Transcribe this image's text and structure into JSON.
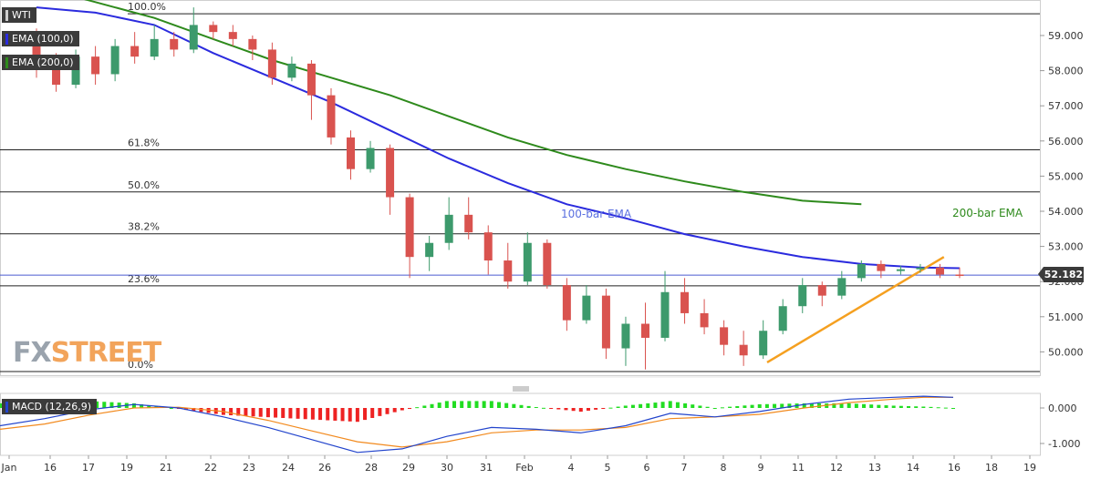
{
  "instrument": "WTI",
  "indicators": {
    "ema100": {
      "label": "EMA (100,0)",
      "color": "#2b2bde"
    },
    "ema200": {
      "label": "EMA (200,0)",
      "color": "#2e8a1c"
    },
    "macd": {
      "label": "MACD (12,26,9)"
    }
  },
  "annotations": {
    "ema100_label": "100-bar EMA",
    "ema200_label": "200-bar EMA"
  },
  "current_price": "52.182",
  "watermark": {
    "fx": "FX",
    "street": "STREET"
  },
  "colors": {
    "up": "#3d9a6c",
    "down": "#d9534f",
    "trendline": "#f5a020",
    "macd_line": "#2244cc",
    "signal_line": "#f28a1e",
    "hist_pos": "#22dd22",
    "hist_neg": "#ee2222"
  },
  "chart_data": {
    "type": "candlestick",
    "price_axis": {
      "ticks": [
        "59.000",
        "58.000",
        "57.000",
        "56.000",
        "55.000",
        "54.000",
        "53.000",
        "52.000",
        "51.000",
        "50.000"
      ],
      "range": [
        49.4,
        59.9
      ]
    },
    "x_labels": [
      "Jan",
      "16",
      "17",
      "19",
      "21",
      "22",
      "23",
      "24",
      "26",
      "28",
      "29",
      "30",
      "31",
      "Feb",
      "4",
      "5",
      "6",
      "7",
      "8",
      "9",
      "11",
      "12",
      "13",
      "14",
      "16",
      "18",
      "19"
    ],
    "fibonacci": [
      {
        "label": "100.0%",
        "price": 59.62
      },
      {
        "label": "61.8%",
        "price": 55.75
      },
      {
        "label": "50.0%",
        "price": 54.55
      },
      {
        "label": "38.2%",
        "price": 53.36
      },
      {
        "label": "23.6%",
        "price": 51.88
      },
      {
        "label": "0.0%",
        "price": 49.44
      }
    ],
    "ema100": [
      [
        0,
        59.8
      ],
      [
        3,
        59.65
      ],
      [
        6,
        59.3
      ],
      [
        9,
        58.5
      ],
      [
        12,
        57.8
      ],
      [
        15,
        57.1
      ],
      [
        18,
        56.3
      ],
      [
        21,
        55.5
      ],
      [
        24,
        54.8
      ],
      [
        27,
        54.2
      ],
      [
        30,
        53.8
      ],
      [
        33,
        53.35
      ],
      [
        36,
        53.0
      ],
      [
        39,
        52.7
      ],
      [
        42,
        52.5
      ],
      [
        45,
        52.4
      ],
      [
        47,
        52.38
      ]
    ],
    "ema200": [
      [
        0,
        60.4
      ],
      [
        3,
        59.95
      ],
      [
        6,
        59.5
      ],
      [
        9,
        58.9
      ],
      [
        12,
        58.3
      ],
      [
        15,
        57.8
      ],
      [
        18,
        57.3
      ],
      [
        21,
        56.7
      ],
      [
        24,
        56.1
      ],
      [
        27,
        55.6
      ],
      [
        30,
        55.2
      ],
      [
        33,
        54.85
      ],
      [
        36,
        54.55
      ],
      [
        39,
        54.3
      ],
      [
        42,
        54.2
      ]
    ],
    "trendline": {
      "start": [
        37.2,
        49.7
      ],
      "end": [
        46.2,
        52.7
      ]
    },
    "candles": [
      [
        58.8,
        58.1,
        59.2,
        57.8
      ],
      [
        58.1,
        57.6,
        58.5,
        57.4
      ],
      [
        57.6,
        58.4,
        58.6,
        57.5
      ],
      [
        58.4,
        57.9,
        58.7,
        57.6
      ],
      [
        57.9,
        58.7,
        58.9,
        57.7
      ],
      [
        58.7,
        58.4,
        59.1,
        58.2
      ],
      [
        58.4,
        58.9,
        59.3,
        58.3
      ],
      [
        58.9,
        58.6,
        59.1,
        58.4
      ],
      [
        58.6,
        59.3,
        59.8,
        58.5
      ],
      [
        59.3,
        59.1,
        59.4,
        58.9
      ],
      [
        59.1,
        58.9,
        59.3,
        58.7
      ],
      [
        58.9,
        58.6,
        59.0,
        58.3
      ],
      [
        58.6,
        57.8,
        58.8,
        57.6
      ],
      [
        57.8,
        58.2,
        58.4,
        57.7
      ],
      [
        58.2,
        57.3,
        58.3,
        56.6
      ],
      [
        57.3,
        56.1,
        57.5,
        55.9
      ],
      [
        56.1,
        55.2,
        56.3,
        54.9
      ],
      [
        55.2,
        55.8,
        56.0,
        55.1
      ],
      [
        55.8,
        54.4,
        55.9,
        53.9
      ],
      [
        54.4,
        52.7,
        54.5,
        52.1
      ],
      [
        52.7,
        53.1,
        53.3,
        52.3
      ],
      [
        53.1,
        53.9,
        54.4,
        52.9
      ],
      [
        53.9,
        53.4,
        54.4,
        53.2
      ],
      [
        53.4,
        52.6,
        53.6,
        52.2
      ],
      [
        52.6,
        52.0,
        53.1,
        51.8
      ],
      [
        52.0,
        53.1,
        53.4,
        51.9
      ],
      [
        53.1,
        51.9,
        53.2,
        51.8
      ],
      [
        51.9,
        50.9,
        52.1,
        50.6
      ],
      [
        50.9,
        51.6,
        51.9,
        50.8
      ],
      [
        51.6,
        50.1,
        51.8,
        49.8
      ],
      [
        50.1,
        50.8,
        51.0,
        49.6
      ],
      [
        50.8,
        50.4,
        51.4,
        49.5
      ],
      [
        50.4,
        51.7,
        52.3,
        50.3
      ],
      [
        51.7,
        51.1,
        52.1,
        50.8
      ],
      [
        51.1,
        50.7,
        51.5,
        50.5
      ],
      [
        50.7,
        50.2,
        50.9,
        49.9
      ],
      [
        50.2,
        49.9,
        50.6,
        49.6
      ],
      [
        49.9,
        50.6,
        50.9,
        49.8
      ],
      [
        50.6,
        51.3,
        51.5,
        50.5
      ],
      [
        51.3,
        51.9,
        52.1,
        51.1
      ],
      [
        51.9,
        51.6,
        52.0,
        51.3
      ],
      [
        51.6,
        52.1,
        52.3,
        51.5
      ],
      [
        52.1,
        52.5,
        52.6,
        52.0
      ],
      [
        52.5,
        52.3,
        52.6,
        52.1
      ],
      [
        52.3,
        52.35,
        52.45,
        52.2
      ],
      [
        52.35,
        52.4,
        52.5,
        52.25
      ],
      [
        52.4,
        52.2,
        52.5,
        52.1
      ],
      [
        52.2,
        52.18,
        52.4,
        52.1
      ]
    ],
    "macd": {
      "ticks": [
        "0.000",
        "-1.000"
      ],
      "range": [
        -1.35,
        0.38
      ],
      "macd_line": [
        [
          0,
          -0.5
        ],
        [
          3,
          -0.3
        ],
        [
          6,
          -0.05
        ],
        [
          9,
          0.1
        ],
        [
          12,
          0.0
        ],
        [
          15,
          -0.25
        ],
        [
          18,
          -0.55
        ],
        [
          21,
          -0.9
        ],
        [
          24,
          -1.25
        ],
        [
          27,
          -1.15
        ],
        [
          30,
          -0.8
        ],
        [
          33,
          -0.55
        ],
        [
          36,
          -0.6
        ],
        [
          39,
          -0.7
        ],
        [
          42,
          -0.5
        ],
        [
          45,
          -0.15
        ],
        [
          48,
          -0.25
        ],
        [
          51,
          -0.1
        ],
        [
          54,
          0.1
        ],
        [
          57,
          0.25
        ],
        [
          60,
          0.3
        ],
        [
          62,
          0.33
        ],
        [
          64,
          0.3
        ]
      ],
      "signal_line": [
        [
          0,
          -0.6
        ],
        [
          3,
          -0.45
        ],
        [
          6,
          -0.2
        ],
        [
          9,
          0.0
        ],
        [
          12,
          0.02
        ],
        [
          15,
          -0.1
        ],
        [
          18,
          -0.35
        ],
        [
          21,
          -0.65
        ],
        [
          24,
          -0.95
        ],
        [
          27,
          -1.1
        ],
        [
          30,
          -0.95
        ],
        [
          33,
          -0.7
        ],
        [
          36,
          -0.62
        ],
        [
          39,
          -0.62
        ],
        [
          42,
          -0.55
        ],
        [
          45,
          -0.3
        ],
        [
          48,
          -0.25
        ],
        [
          51,
          -0.18
        ],
        [
          54,
          0.0
        ],
        [
          57,
          0.15
        ],
        [
          60,
          0.25
        ],
        [
          62,
          0.3
        ],
        [
          64,
          0.3
        ]
      ]
    }
  }
}
